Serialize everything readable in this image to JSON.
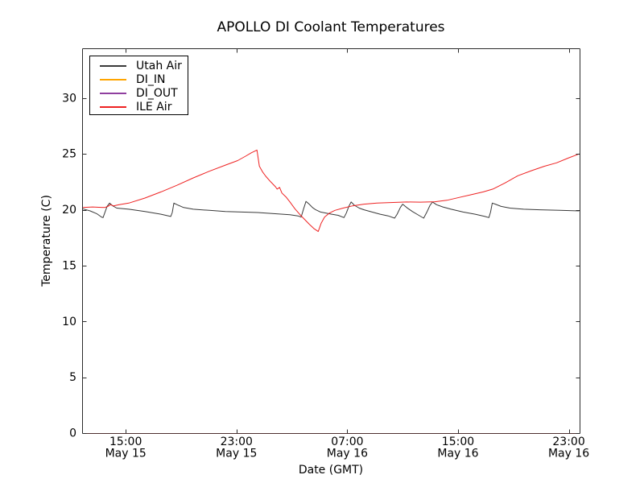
{
  "chart_data": {
    "type": "line",
    "title": "APOLLO DI Coolant Temperatures",
    "xlabel": "Date (GMT)",
    "ylabel": "Temperature (C)",
    "x_encoding": "hours since May 15 00:00 GMT",
    "xlim": [
      11.85,
      47.78
    ],
    "ylim": [
      0,
      34.46
    ],
    "grid": false,
    "legend_position": "upper left",
    "x_ticks": [
      {
        "value": 15,
        "time": "15:00",
        "date": "May 15"
      },
      {
        "value": 23,
        "time": "23:00",
        "date": "May 15"
      },
      {
        "value": 31,
        "time": "07:00",
        "date": "May 16"
      },
      {
        "value": 39,
        "time": "15:00",
        "date": "May 16"
      },
      {
        "value": 47,
        "time": "23:00",
        "date": "May 16"
      }
    ],
    "y_ticks": [
      0,
      5,
      10,
      15,
      20,
      25,
      30
    ],
    "series": [
      {
        "name": "Utah Air",
        "color": "#3a3a3a",
        "data": [
          [
            11.85,
            20.1
          ],
          [
            12.43,
            19.9
          ],
          [
            12.9,
            19.65
          ],
          [
            13.25,
            19.35
          ],
          [
            13.36,
            19.3
          ],
          [
            13.65,
            20.3
          ],
          [
            13.83,
            20.6
          ],
          [
            14.06,
            20.35
          ],
          [
            14.35,
            20.15
          ],
          [
            15.22,
            20.05
          ],
          [
            16.39,
            19.85
          ],
          [
            17.55,
            19.6
          ],
          [
            18.25,
            19.4
          ],
          [
            18.36,
            19.75
          ],
          [
            18.48,
            20.6
          ],
          [
            18.71,
            20.45
          ],
          [
            19.18,
            20.2
          ],
          [
            19.88,
            20.05
          ],
          [
            21.04,
            19.95
          ],
          [
            22.2,
            19.85
          ],
          [
            23.37,
            19.8
          ],
          [
            24.53,
            19.75
          ],
          [
            25.69,
            19.65
          ],
          [
            26.86,
            19.55
          ],
          [
            27.44,
            19.45
          ],
          [
            27.67,
            19.35
          ],
          [
            27.85,
            20.1
          ],
          [
            28.02,
            20.75
          ],
          [
            28.25,
            20.5
          ],
          [
            28.49,
            20.2
          ],
          [
            28.72,
            20.0
          ],
          [
            29.07,
            19.8
          ],
          [
            29.48,
            19.7
          ],
          [
            29.88,
            19.6
          ],
          [
            30.35,
            19.5
          ],
          [
            30.76,
            19.3
          ],
          [
            30.93,
            19.7
          ],
          [
            31.11,
            20.3
          ],
          [
            31.28,
            20.7
          ],
          [
            31.51,
            20.4
          ],
          [
            31.86,
            20.15
          ],
          [
            32.21,
            20.0
          ],
          [
            32.79,
            19.8
          ],
          [
            33.38,
            19.6
          ],
          [
            33.96,
            19.45
          ],
          [
            34.42,
            19.25
          ],
          [
            34.6,
            19.6
          ],
          [
            34.83,
            20.2
          ],
          [
            35.0,
            20.5
          ],
          [
            35.29,
            20.2
          ],
          [
            35.7,
            19.85
          ],
          [
            36.17,
            19.5
          ],
          [
            36.52,
            19.25
          ],
          [
            36.75,
            19.8
          ],
          [
            36.98,
            20.4
          ],
          [
            37.16,
            20.7
          ],
          [
            37.45,
            20.45
          ],
          [
            37.91,
            20.25
          ],
          [
            38.5,
            20.05
          ],
          [
            39.37,
            19.8
          ],
          [
            40.24,
            19.6
          ],
          [
            40.94,
            19.4
          ],
          [
            41.23,
            19.3
          ],
          [
            41.35,
            19.8
          ],
          [
            41.47,
            20.6
          ],
          [
            41.7,
            20.5
          ],
          [
            42.11,
            20.3
          ],
          [
            42.75,
            20.15
          ],
          [
            43.74,
            20.05
          ],
          [
            44.9,
            20.0
          ],
          [
            46.36,
            19.95
          ],
          [
            47.75,
            19.9
          ]
        ]
      },
      {
        "name": "DI_IN",
        "color": "#ffa500",
        "data": []
      },
      {
        "name": "DI_OUT",
        "color": "#8f3f9f",
        "data": []
      },
      {
        "name": "ILE Air",
        "color": "#ee2222",
        "data": [
          [
            11.85,
            20.2
          ],
          [
            12.61,
            20.25
          ],
          [
            13.48,
            20.2
          ],
          [
            13.71,
            20.3
          ],
          [
            13.89,
            20.45
          ],
          [
            14.12,
            20.35
          ],
          [
            14.53,
            20.45
          ],
          [
            15.22,
            20.6
          ],
          [
            16.39,
            21.05
          ],
          [
            17.55,
            21.6
          ],
          [
            18.71,
            22.2
          ],
          [
            19.88,
            22.85
          ],
          [
            21.04,
            23.45
          ],
          [
            22.2,
            24.0
          ],
          [
            23.08,
            24.4
          ],
          [
            23.66,
            24.8
          ],
          [
            24.07,
            25.1
          ],
          [
            24.48,
            25.35
          ],
          [
            24.65,
            23.9
          ],
          [
            24.88,
            23.4
          ],
          [
            25.12,
            23.0
          ],
          [
            25.47,
            22.5
          ],
          [
            25.82,
            22.05
          ],
          [
            25.93,
            21.85
          ],
          [
            26.11,
            22.0
          ],
          [
            26.28,
            21.5
          ],
          [
            26.57,
            21.15
          ],
          [
            26.86,
            20.7
          ],
          [
            27.21,
            20.1
          ],
          [
            27.56,
            19.6
          ],
          [
            27.91,
            19.15
          ],
          [
            28.26,
            18.7
          ],
          [
            28.61,
            18.3
          ],
          [
            28.9,
            18.05
          ],
          [
            29.12,
            18.8
          ],
          [
            29.36,
            19.35
          ],
          [
            29.71,
            19.7
          ],
          [
            30.11,
            19.95
          ],
          [
            30.7,
            20.15
          ],
          [
            31.39,
            20.35
          ],
          [
            32.21,
            20.5
          ],
          [
            33.14,
            20.6
          ],
          [
            34.13,
            20.65
          ],
          [
            35.29,
            20.7
          ],
          [
            36.28,
            20.68
          ],
          [
            37.33,
            20.72
          ],
          [
            38.2,
            20.85
          ],
          [
            39.07,
            21.1
          ],
          [
            39.94,
            21.35
          ],
          [
            40.82,
            21.6
          ],
          [
            41.51,
            21.85
          ],
          [
            42.39,
            22.4
          ],
          [
            43.32,
            23.05
          ],
          [
            44.31,
            23.5
          ],
          [
            45.24,
            23.9
          ],
          [
            46.11,
            24.2
          ],
          [
            46.99,
            24.65
          ],
          [
            47.75,
            25.0
          ]
        ]
      }
    ]
  }
}
